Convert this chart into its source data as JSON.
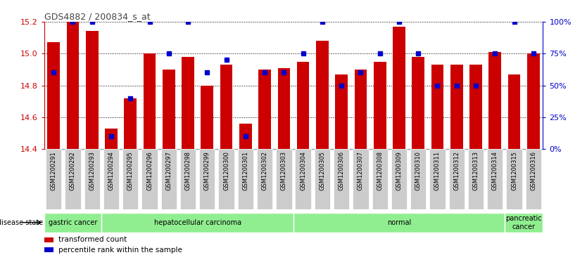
{
  "title": "GDS4882 / 200834_s_at",
  "samples": [
    "GSM1200291",
    "GSM1200292",
    "GSM1200293",
    "GSM1200294",
    "GSM1200295",
    "GSM1200296",
    "GSM1200297",
    "GSM1200298",
    "GSM1200299",
    "GSM1200300",
    "GSM1200301",
    "GSM1200302",
    "GSM1200303",
    "GSM1200304",
    "GSM1200305",
    "GSM1200306",
    "GSM1200307",
    "GSM1200308",
    "GSM1200309",
    "GSM1200310",
    "GSM1200311",
    "GSM1200312",
    "GSM1200313",
    "GSM1200314",
    "GSM1200315",
    "GSM1200316"
  ],
  "values": [
    15.07,
    15.2,
    15.14,
    14.53,
    14.72,
    15.0,
    14.9,
    14.98,
    14.8,
    14.93,
    14.56,
    14.9,
    14.91,
    14.95,
    15.08,
    14.87,
    14.9,
    14.95,
    15.17,
    14.98,
    14.93,
    14.93,
    14.93,
    15.01,
    14.87,
    15.0
  ],
  "percentile": [
    60,
    100,
    100,
    10,
    40,
    100,
    75,
    100,
    60,
    70,
    10,
    60,
    60,
    75,
    100,
    50,
    60,
    75,
    100,
    75,
    50,
    50,
    50,
    75,
    100,
    75
  ],
  "group_boundaries": [
    {
      "label": "gastric cancer",
      "start": 0,
      "end": 3,
      "color": "#90EE90"
    },
    {
      "label": "hepatocellular carcinoma",
      "start": 3,
      "end": 13,
      "color": "#90EE90"
    },
    {
      "label": "normal",
      "start": 13,
      "end": 24,
      "color": "#90EE90"
    },
    {
      "label": "pancreatic\ncancer",
      "start": 24,
      "end": 26,
      "color": "#90EE90"
    }
  ],
  "bar_color": "#CC0000",
  "percentile_color": "#0000CC",
  "ylim": [
    14.4,
    15.2
  ],
  "yticks_left": [
    14.4,
    14.6,
    14.8,
    15.0,
    15.2
  ],
  "yticks_right": [
    0,
    25,
    50,
    75,
    100
  ],
  "bg_color": "#ffffff",
  "tick_label_bg": "#cccccc",
  "grid_color": "#000000",
  "disease_state_label": "disease state",
  "legend_items": [
    {
      "color": "#CC0000",
      "label": "transformed count"
    },
    {
      "color": "#0000CC",
      "label": "percentile rank within the sample"
    }
  ]
}
